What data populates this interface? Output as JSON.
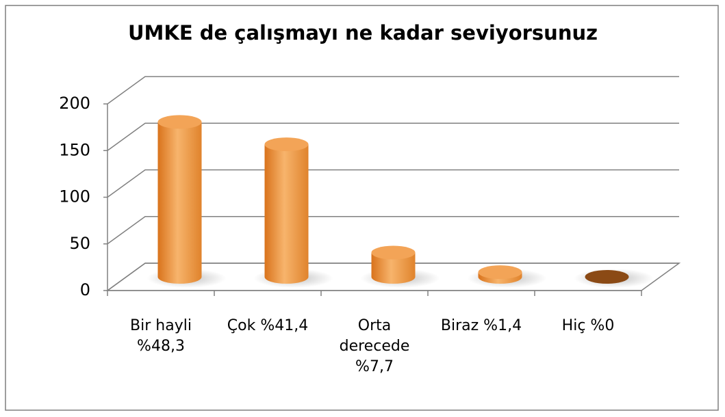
{
  "chart_data": {
    "type": "bar3d",
    "title": "UMKE de çalışmayı ne kadar seviyorsunuz",
    "categories": [
      "Bir hayli %48,3",
      "Çok %41,4",
      "Orta derecede %7,7",
      "Biraz %1,4",
      "Hiç %0"
    ],
    "values": [
      166,
      142,
      26,
      5,
      0
    ],
    "color": "#ee9a45",
    "ylim": [
      0,
      200
    ],
    "yticks": [
      0,
      50,
      100,
      150,
      200
    ],
    "grid": true
  }
}
